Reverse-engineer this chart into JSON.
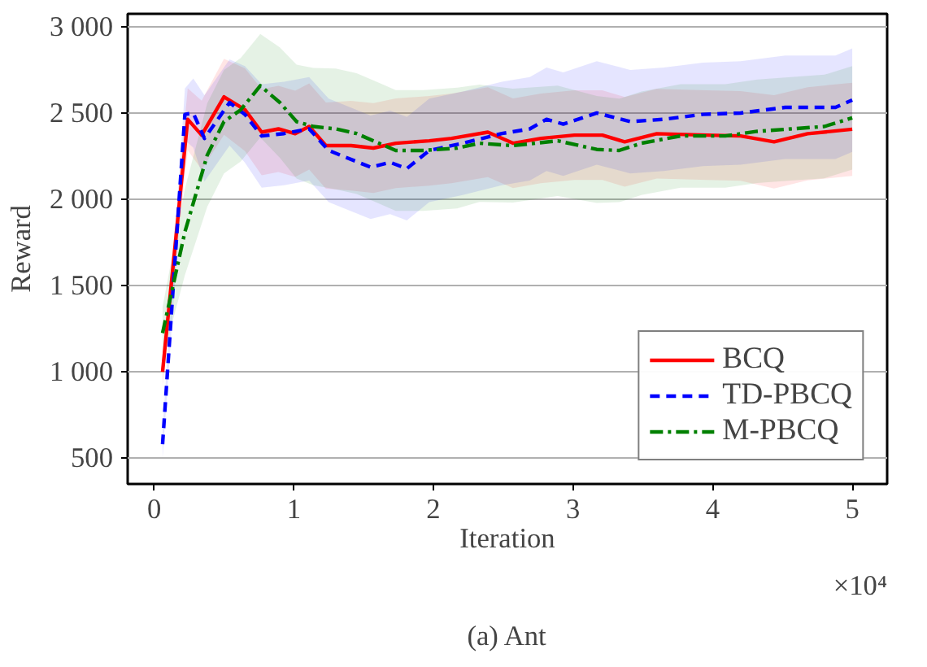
{
  "chart_data": {
    "type": "line",
    "title": "(a) Ant",
    "xlabel": "Iteration",
    "ylabel": "Reward",
    "annotations": [
      "×10⁴"
    ],
    "xlim": [
      -0.19,
      5.25
    ],
    "xticks": [
      0,
      1,
      2,
      3,
      4,
      5
    ],
    "ylim": [
      350,
      3075
    ],
    "yticks": [
      {
        "value": 500,
        "label": "500"
      },
      {
        "value": 1000,
        "label": "1 000"
      },
      {
        "value": 1500,
        "label": "1 500"
      },
      {
        "value": 2000,
        "label": "2 000"
      },
      {
        "value": 2500,
        "label": "2 500"
      },
      {
        "value": 3000,
        "label": "3 000"
      }
    ],
    "grid": "y",
    "legend": "bottom right",
    "series": [
      {
        "name": "BCQ",
        "color": "#ff0000",
        "line_style": "solid",
        "x": [
          0.06,
          0.24,
          0.34,
          0.5,
          0.65,
          0.77,
          0.89,
          1.01,
          1.11,
          1.23,
          1.41,
          1.57,
          1.73,
          1.97,
          2.13,
          2.39,
          2.57,
          2.77,
          3.01,
          3.21,
          3.37,
          3.6,
          3.96,
          4.2,
          4.44,
          4.68,
          5.0
        ],
        "values": [
          1000,
          2464,
          2372,
          2594,
          2519,
          2389,
          2408,
          2380,
          2422,
          2311,
          2311,
          2297,
          2325,
          2339,
          2353,
          2389,
          2325,
          2353,
          2372,
          2372,
          2333,
          2380,
          2372,
          2367,
          2333,
          2380,
          2406
        ],
        "lower": [
          920,
          2284,
          2172,
          2374,
          2279,
          2139,
          2158,
          2130,
          2172,
          2061,
          2051,
          2037,
          2065,
          2079,
          2093,
          2129,
          2065,
          2093,
          2112,
          2112,
          2073,
          2120,
          2112,
          2107,
          2063,
          2110,
          2136
        ],
        "upper": [
          1080,
          2644,
          2572,
          2814,
          2759,
          2639,
          2658,
          2630,
          2672,
          2561,
          2571,
          2557,
          2585,
          2599,
          2613,
          2649,
          2585,
          2613,
          2632,
          2632,
          2593,
          2640,
          2632,
          2627,
          2603,
          2650,
          2676
        ]
      },
      {
        "name": "TD-PBCQ",
        "color": "#0000ff",
        "line_style": "dashed",
        "x": [
          0.06,
          0.22,
          0.28,
          0.36,
          0.54,
          0.65,
          0.77,
          0.93,
          1.11,
          1.25,
          1.55,
          1.69,
          1.81,
          1.97,
          2.21,
          2.49,
          2.69,
          2.81,
          2.93,
          3.17,
          3.41,
          3.65,
          3.93,
          4.2,
          4.52,
          4.88,
          5.0
        ],
        "values": [
          580,
          2492,
          2500,
          2353,
          2561,
          2492,
          2367,
          2381,
          2408,
          2283,
          2186,
          2214,
          2178,
          2283,
          2325,
          2381,
          2408,
          2464,
          2436,
          2500,
          2450,
          2464,
          2492,
          2500,
          2533,
          2533,
          2575
        ],
        "lower": [
          500,
          2342,
          2300,
          2103,
          2311,
          2212,
          2067,
          2081,
          2108,
          1983,
          1886,
          1914,
          1878,
          1983,
          2025,
          2081,
          2108,
          2164,
          2136,
          2200,
          2150,
          2164,
          2192,
          2200,
          2233,
          2233,
          2275
        ],
        "upper": [
          660,
          2642,
          2700,
          2603,
          2811,
          2772,
          2667,
          2681,
          2708,
          2583,
          2486,
          2514,
          2478,
          2583,
          2625,
          2681,
          2708,
          2764,
          2736,
          2800,
          2750,
          2764,
          2792,
          2800,
          2833,
          2833,
          2875
        ]
      },
      {
        "name": "M-PBCQ",
        "color": "#008000",
        "line_style": "dashdot",
        "x": [
          0.06,
          0.22,
          0.38,
          0.5,
          0.62,
          0.76,
          0.9,
          1.02,
          1.14,
          1.3,
          1.45,
          1.61,
          1.73,
          1.93,
          2.17,
          2.33,
          2.57,
          2.89,
          3.17,
          3.33,
          3.49,
          3.77,
          4.09,
          4.32,
          4.56,
          4.8,
          5.0
        ],
        "values": [
          1225,
          1811,
          2256,
          2450,
          2519,
          2658,
          2561,
          2450,
          2422,
          2408,
          2381,
          2325,
          2283,
          2283,
          2297,
          2325,
          2311,
          2339,
          2289,
          2283,
          2325,
          2367,
          2367,
          2394,
          2408,
          2422,
          2472
        ],
        "lower": [
          1075,
          1561,
          1956,
          2150,
          2219,
          2358,
          2241,
          2120,
          2082,
          2058,
          2031,
          1975,
          1933,
          1933,
          1947,
          1985,
          1981,
          2019,
          1979,
          1983,
          2025,
          2067,
          2067,
          2094,
          2108,
          2122,
          2172
        ],
        "upper": [
          1375,
          2061,
          2556,
          2750,
          2819,
          2958,
          2881,
          2780,
          2762,
          2758,
          2731,
          2675,
          2633,
          2633,
          2647,
          2665,
          2641,
          2659,
          2599,
          2583,
          2625,
          2667,
          2667,
          2694,
          2708,
          2722,
          2772
        ]
      }
    ]
  }
}
